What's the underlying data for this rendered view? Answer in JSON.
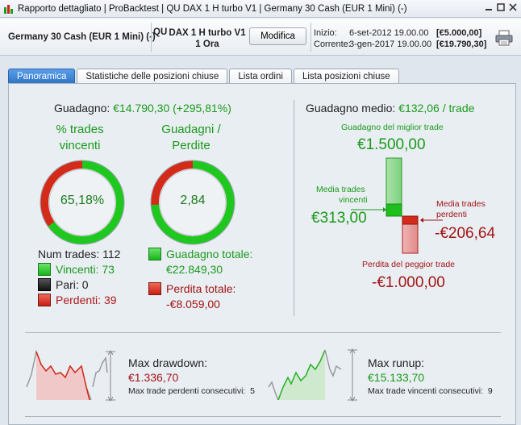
{
  "titlebar": {
    "title": "Rapporto dettagliato | ProBacktest | QU DAX 1 H turbo V1 | Germany 30 Cash (EUR 1 Mini) (-)",
    "min_icon": "minimize-icon",
    "max_icon": "maximize-icon",
    "close_icon": "close-icon"
  },
  "header": {
    "instrument": "Germany 30 Cash (EUR 1 Mini) (-)",
    "qu": "QU",
    "strategy_line1": "DAX 1 H turbo V1",
    "strategy_line2": "1 Ora",
    "modify_label": "Modifica",
    "start_label": "Inizio:",
    "start_date": "6-set-2012 19.00.00",
    "start_amount": "[€5.000,00]",
    "current_label": "Corrente:",
    "current_date": "3-gen-2017 19.00.00",
    "current_amount": "[€19.790,30]"
  },
  "tabs": [
    {
      "label": "Panoramica",
      "active": true
    },
    {
      "label": "Statistiche delle posizioni chiuse",
      "active": false
    },
    {
      "label": "Lista ordini",
      "active": false
    },
    {
      "label": "Lista posizioni chiuse",
      "active": false
    }
  ],
  "overview": {
    "gain_label": "Guadagno:",
    "gain_value": "€14.790,30 (+295,81%)",
    "win_pct_title_1": "% trades",
    "win_pct_title_2": "vincenti",
    "win_pct_value": "65,18%",
    "win_fraction": 0.6518,
    "ratio_title_1": "Guadagni /",
    "ratio_title_2": "Perdite",
    "ratio_value": "2,84",
    "gain_fraction": 0.739,
    "num_trades_label": "Num trades:",
    "num_trades": "112",
    "winners_label": "Vincenti:",
    "winners": "73",
    "even_label": "Pari:",
    "even": "0",
    "losers_label": "Perdenti:",
    "losers": "39",
    "total_gain_label": "Guadagno totale:",
    "total_gain": "€22.849,30",
    "total_loss_label": "Perdita totale:",
    "total_loss": "-€8.059,00"
  },
  "average": {
    "title_label": "Guadagno medio:",
    "title_value": "€132,06 / trade",
    "best_label": "Guadagno del miglior trade",
    "best_value": "€1.500,00",
    "avg_win_label_1": "Media trades",
    "avg_win_label_2": "vincenti",
    "avg_win_value": "€313,00",
    "avg_loss_label_1": "Media trades",
    "avg_loss_label_2": "perdenti",
    "avg_loss_value": "-€206,64",
    "worst_label": "Perdita del peggior trade",
    "worst_value": "-€1.000,00"
  },
  "drawdown": {
    "title": "Max drawdown:",
    "value": "€1.336,70",
    "sub_label": "Max trade perdenti consecutivi:",
    "sub_value": "5"
  },
  "runup": {
    "title": "Max runup:",
    "value": "€15.133,70",
    "sub_label": "Max trade vincenti consecutivi:",
    "sub_value": "9"
  },
  "colors": {
    "green": "#1a9a1a",
    "red": "#b01818",
    "tab_active": "#2f73c8"
  }
}
